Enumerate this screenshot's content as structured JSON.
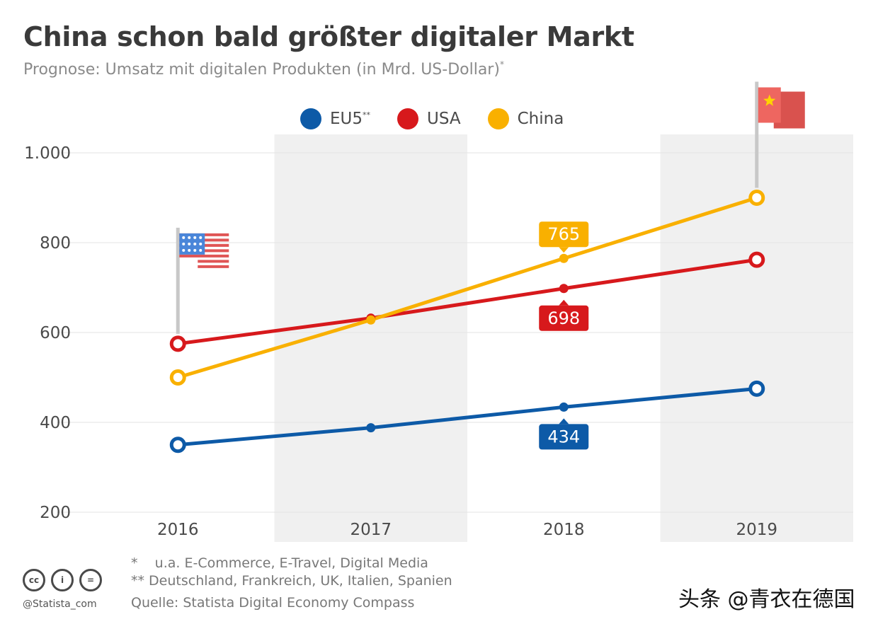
{
  "header": {
    "title": "China schon bald größter digitaler Markt",
    "subtitle": "Prognose: Umsatz mit digitalen Produkten (in Mrd. US-Dollar)",
    "subtitle_mark": "*"
  },
  "legend": [
    {
      "name": "EU5",
      "mark": "**",
      "color": "#0d5aa7"
    },
    {
      "name": "USA",
      "mark": "",
      "color": "#d7191c"
    },
    {
      "name": "China",
      "mark": "",
      "color": "#f9b000"
    }
  ],
  "chart_data": {
    "type": "line",
    "title": "China schon bald größter digitaler Markt",
    "ylabel": "Mrd. US-Dollar",
    "categories": [
      "2016",
      "2017",
      "2018",
      "2019"
    ],
    "ylim": [
      200,
      1000
    ],
    "yticks": [
      200,
      400,
      600,
      800,
      1000
    ],
    "ytick_labels": [
      "200",
      "400",
      "600",
      "800",
      "1.000"
    ],
    "series": [
      {
        "name": "EU5",
        "color": "#0d5aa7",
        "values": [
          350,
          388,
          434,
          475
        ]
      },
      {
        "name": "USA",
        "color": "#d7191c",
        "values": [
          575,
          632,
          698,
          762
        ]
      },
      {
        "name": "China",
        "color": "#f9b000",
        "values": [
          500,
          628,
          765,
          900
        ]
      }
    ],
    "annotations": [
      {
        "series": "China",
        "category": "2018",
        "text": "765",
        "position": "above"
      },
      {
        "series": "USA",
        "category": "2018",
        "text": "698",
        "position": "below"
      },
      {
        "series": "EU5",
        "category": "2018",
        "text": "434",
        "position": "below"
      }
    ],
    "flags": [
      {
        "country": "USA",
        "category": "2016"
      },
      {
        "country": "China",
        "category": "2019"
      }
    ]
  },
  "footnotes": [
    {
      "mark": "*",
      "text": "u.a. E-Commerce, E-Travel, Digital Media"
    },
    {
      "mark": "**",
      "text": "Deutschland, Frankreich, UK, Italien, Spanien"
    }
  ],
  "source": "Quelle: Statista Digital Economy Compass",
  "brand": "@Statista_com",
  "license_icons": [
    "cc-icon",
    "person-icon",
    "equals-icon"
  ],
  "license_glyphs": [
    "cc",
    "i",
    "="
  ],
  "watermark": "头条 @青衣在德国"
}
